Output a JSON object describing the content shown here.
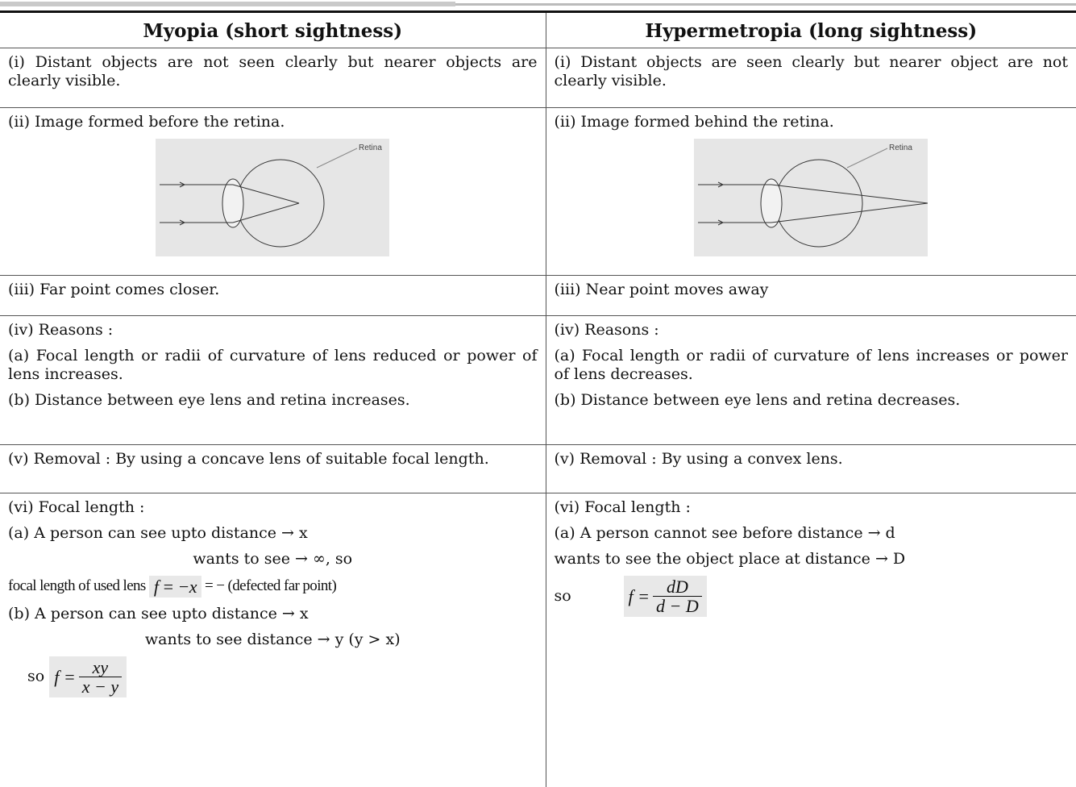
{
  "header": {
    "left": "Myopia (short sightness)",
    "right": "Hypermetropia (long sightness)"
  },
  "rows": [
    {
      "left": [
        "(i) Distant objects are not seen clearly but nearer objects are clearly visible."
      ],
      "right": [
        "(i) Distant objects are seen clearly but nearer object are not clearly visible."
      ]
    },
    {
      "left": [
        "(ii) Image formed before the retina."
      ],
      "right": [
        "(ii) Image formed behind the retina."
      ],
      "diagram_labels": [
        "Retina",
        "Retina"
      ]
    },
    {
      "left": [
        "(iii) Far point comes closer."
      ],
      "right": [
        "(iii) Near point moves away"
      ]
    },
    {
      "left": [
        "(iv) Reasons :",
        "(a) Focal length or radii of curvature of lens reduced or power of lens increases.",
        "(b) Distance between eye lens and retina increases."
      ],
      "right": [
        "(iv) Reasons :",
        "(a) Focal length or radii of curvature of lens increases or power of lens decreases.",
        "(b) Distance between eye lens and retina decreases."
      ]
    },
    {
      "left": [
        "(v) Removal : By using a concave lens of suitable focal length."
      ],
      "right": [
        "(v) Removal : By using a convex lens."
      ]
    },
    {
      "left": [
        "(vi) Focal length :",
        "(a) A person can see upto distance → x",
        "wants to see → ∞, so",
        "focal length of used lens",
        "(b)  A person can see upto distance → x",
        "wants to see distance → y (y > x)",
        "so"
      ],
      "right": [
        "(vi) Focal length :",
        "(a) A person cannot see before distance → d",
        "wants to see the object place at distance → D",
        "so"
      ],
      "formulas": {
        "left_a": {
          "lhs": "f = −x",
          "rhs": "= − (defected far point)"
        },
        "left_b": {
          "lhs": "f =",
          "numerator": "xy",
          "denominator": "x − y"
        },
        "right": {
          "lhs": "f =",
          "numerator": "dD",
          "denominator": "d − D"
        }
      }
    }
  ]
}
